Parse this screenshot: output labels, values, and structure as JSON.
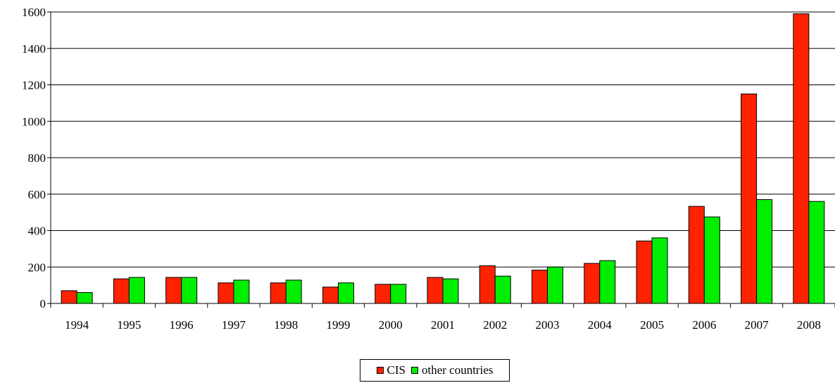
{
  "chart_data": {
    "type": "bar",
    "title": "",
    "xlabel": "",
    "ylabel": "",
    "categories": [
      "1994",
      "1995",
      "1996",
      "1997",
      "1998",
      "1999",
      "2000",
      "2001",
      "2002",
      "2003",
      "2004",
      "2005",
      "2006",
      "2007",
      "2008"
    ],
    "series": [
      {
        "name": "CIS",
        "color": "#ff2200",
        "values": [
          70,
          135,
          143,
          113,
          113,
          90,
          105,
          143,
          207,
          183,
          220,
          343,
          533,
          1150,
          1590
        ]
      },
      {
        "name": "other countries",
        "color": "#00ee00",
        "values": [
          60,
          143,
          143,
          128,
          128,
          113,
          105,
          135,
          150,
          200,
          235,
          360,
          475,
          570,
          560
        ]
      }
    ],
    "ylim": [
      0,
      1600
    ],
    "yticks": [
      "0",
      "200",
      "400",
      "600",
      "800",
      "1000",
      "1200",
      "1400",
      "1600"
    ],
    "grid": true,
    "legend_position": "bottom"
  }
}
